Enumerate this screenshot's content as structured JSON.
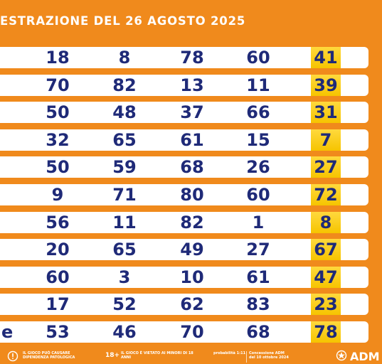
{
  "title": "ESTRAZIONE DEL 26 AGOSTO 2025",
  "rows": [
    {
      "wheel": "",
      "numbers": [
        "18",
        "8",
        "78",
        "60"
      ],
      "extra": "41"
    },
    {
      "wheel": "",
      "numbers": [
        "70",
        "82",
        "13",
        "11"
      ],
      "extra": "39"
    },
    {
      "wheel": "",
      "numbers": [
        "50",
        "48",
        "37",
        "66"
      ],
      "extra": "31"
    },
    {
      "wheel": "",
      "numbers": [
        "32",
        "65",
        "61",
        "15"
      ],
      "extra": "7"
    },
    {
      "wheel": "",
      "numbers": [
        "50",
        "59",
        "68",
        "26"
      ],
      "extra": "27"
    },
    {
      "wheel": "",
      "numbers": [
        "9",
        "71",
        "80",
        "60"
      ],
      "extra": "72"
    },
    {
      "wheel": "",
      "numbers": [
        "56",
        "11",
        "82",
        "1"
      ],
      "extra": "8"
    },
    {
      "wheel": "",
      "numbers": [
        "20",
        "65",
        "49",
        "27"
      ],
      "extra": "67"
    },
    {
      "wheel": "",
      "numbers": [
        "60",
        "3",
        "10",
        "61"
      ],
      "extra": "47"
    },
    {
      "wheel": "",
      "numbers": [
        "17",
        "52",
        "62",
        "83"
      ],
      "extra": "23"
    },
    {
      "wheel": "e",
      "numbers": [
        "53",
        "46",
        "70",
        "68"
      ],
      "extra": "78"
    }
  ],
  "footer": {
    "warning_1": "IL GIOCO PUÒ CAUSARE DIPENDENZA PATOLOGICA",
    "age_badge": "18+",
    "warning_2": "IL GIOCO È VIETATO AI MINORI DI 18 ANNI",
    "odds": "probabilità 1:11",
    "concession": "Concessione ADM del 10 ottobre 2024",
    "logo": "ADM",
    "colors": {
      "background": "#F08A1C",
      "number": "#1F2A78",
      "extra_highlight": "#F6C400"
    }
  }
}
